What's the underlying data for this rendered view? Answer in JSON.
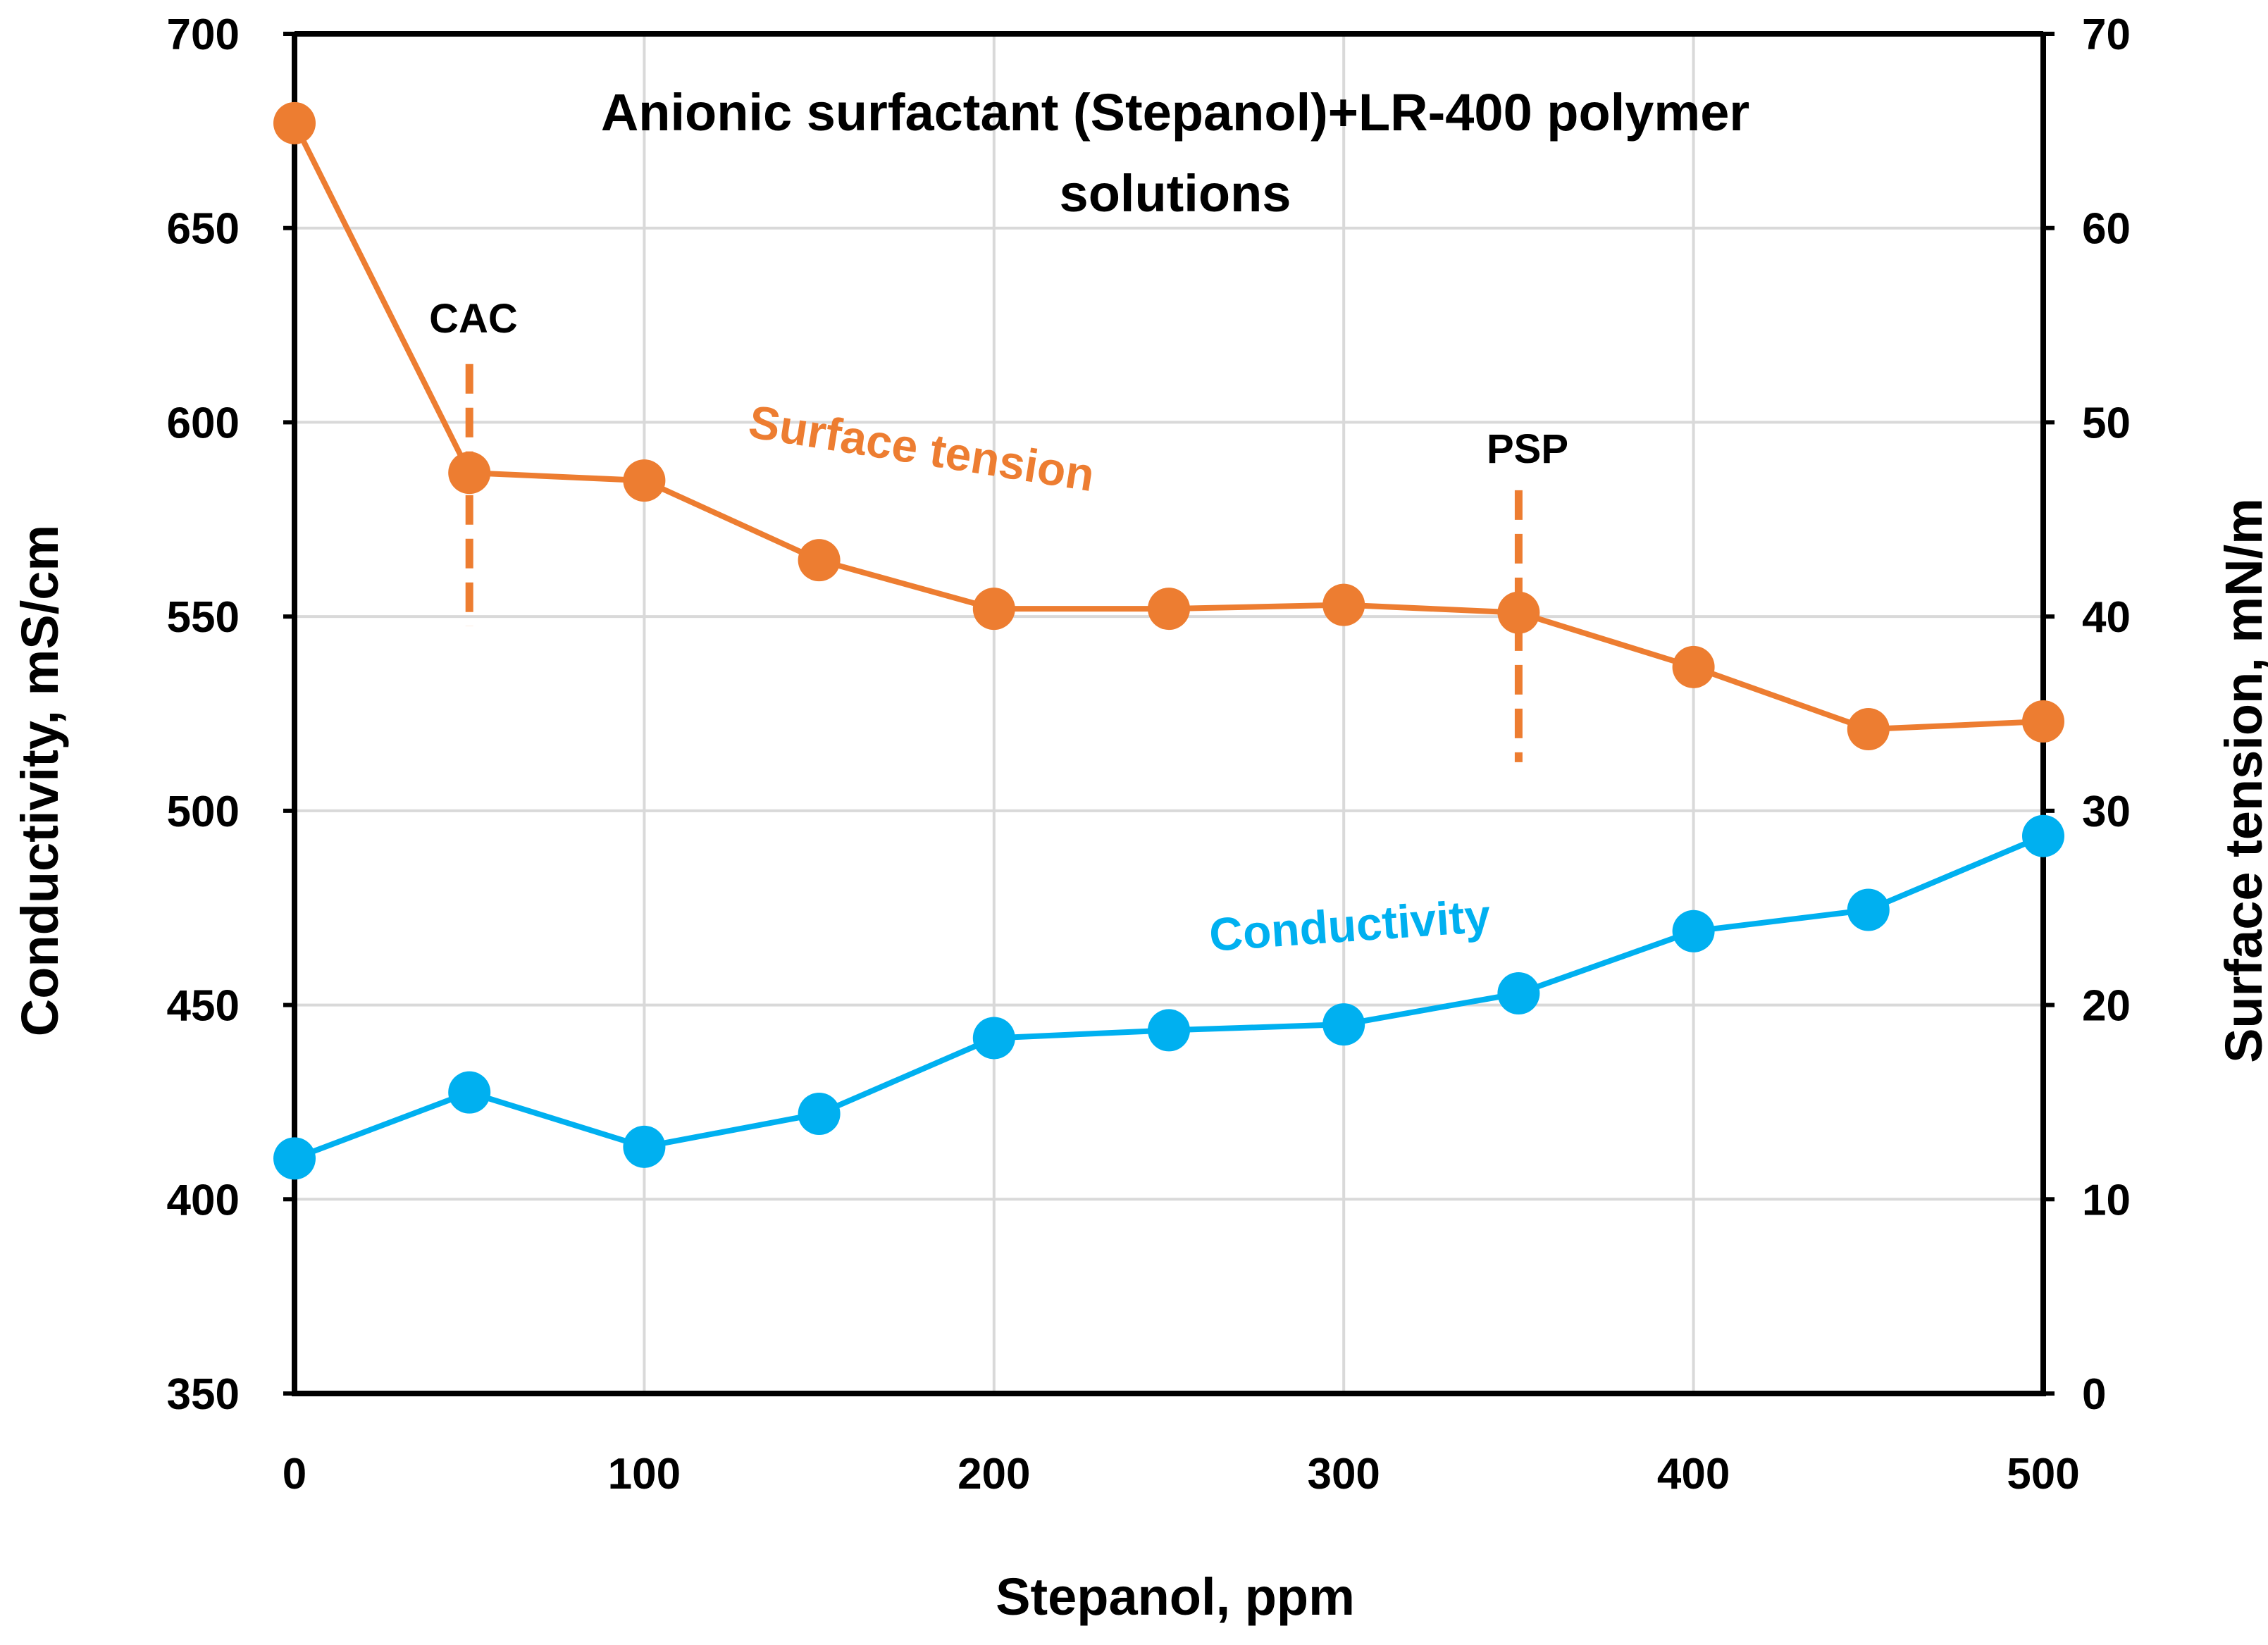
{
  "chart_data": {
    "type": "line",
    "title": [
      "Anionic surfactant (Stepanol)+LR-400 polymer",
      "solutions"
    ],
    "xlabel": "Stepanol, ppm",
    "ylabel_left": "Conductivity, mS/cm",
    "ylabel_right": "Surface tension, mN/m",
    "xlim": [
      0,
      500
    ],
    "ylim_left": [
      350,
      700
    ],
    "ylim_right": [
      0,
      70
    ],
    "x_ticks": [
      "0",
      "100",
      "200",
      "300",
      "400",
      "500"
    ],
    "y_left_ticks": [
      "350",
      "400",
      "450",
      "500",
      "550",
      "600",
      "650",
      "700"
    ],
    "y_right_ticks": [
      "0",
      "10",
      "20",
      "30",
      "40",
      "50",
      "60",
      "70"
    ],
    "grid": true,
    "x": [
      0,
      50,
      100,
      150,
      200,
      250,
      300,
      350,
      400,
      450,
      500
    ],
    "series": [
      {
        "name": "Surface tension",
        "axis": "right",
        "color": "#ED7D31",
        "values": [
          65.4,
          47.4,
          47.0,
          42.9,
          40.4,
          40.4,
          40.6,
          40.2,
          37.4,
          34.2,
          34.6
        ]
      },
      {
        "name": "Conductivity",
        "axis": "left",
        "color": "#00B0F0",
        "values": [
          410.5,
          427.5,
          413.5,
          422,
          441.5,
          443.5,
          445,
          453,
          469,
          474.5,
          493.5
        ]
      }
    ],
    "annotations": [
      {
        "label": "CAC",
        "x": 50,
        "y_range": [
          39.5,
          53
        ],
        "axis": "right"
      },
      {
        "label": "PSP",
        "x": 350,
        "y_range": [
          32.5,
          46.5
        ],
        "axis": "right"
      }
    ]
  }
}
